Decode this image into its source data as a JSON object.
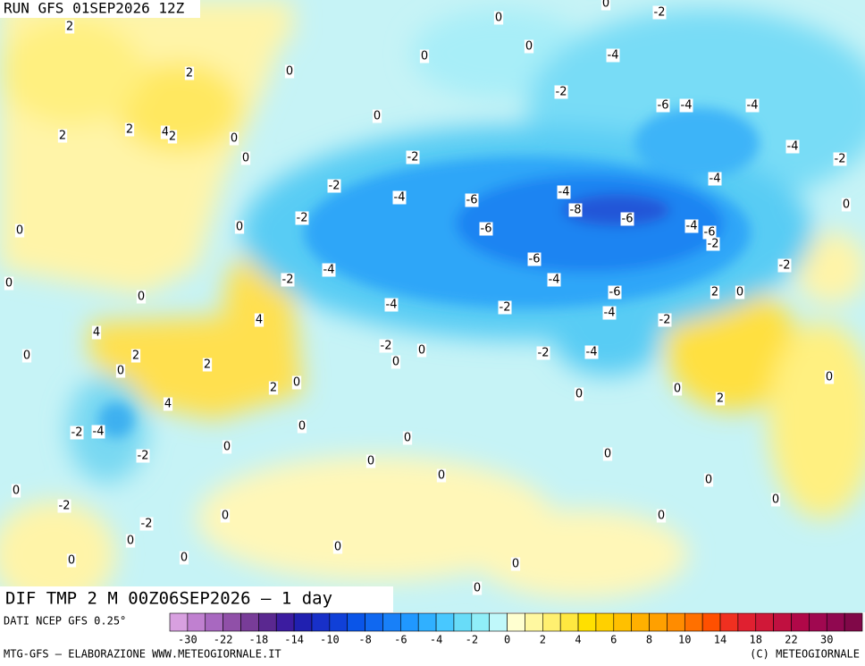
{
  "header": {
    "title": "RUN GFS 01SEP2026 12Z"
  },
  "map": {
    "contour_labels": [
      2,
      2,
      2,
      2,
      4,
      2,
      0,
      0,
      0,
      0,
      0,
      0,
      0,
      0,
      -2,
      -4,
      -2,
      -6,
      -4,
      -4,
      -4,
      -2,
      -4,
      -2,
      -2,
      -4,
      -6,
      -4,
      -8,
      -6,
      -6,
      -4,
      -6,
      -2,
      -2,
      -2,
      0,
      0,
      -4,
      -2,
      -6,
      -4,
      -6,
      2,
      0,
      0,
      0,
      -4,
      -2,
      -4,
      -2,
      4,
      4,
      -2,
      0,
      0,
      -2,
      -4,
      0,
      2,
      2,
      0,
      2,
      0,
      4,
      0,
      0,
      2,
      0,
      -2,
      -4,
      0,
      0,
      0,
      -2,
      0,
      0,
      0,
      0,
      -2,
      0,
      0,
      -2,
      0,
      0,
      0,
      0,
      0,
      0,
      0,
      0,
      0
    ]
  },
  "footer": {
    "product": "DIF TMP 2 M 00Z06SEP2026 — 1 day",
    "source": "DATI NCEP GFS 0.25°",
    "credit": "MTG-GFS — ELABORAZIONE WWW.METEOGIORNALE.IT",
    "copyright": "(C) METEOGIORNALE"
  },
  "colorbar": {
    "colors": [
      "#d8a0e0",
      "#c080d0",
      "#a868c0",
      "#9050a8",
      "#783c98",
      "#5a2890",
      "#3c1ca0",
      "#2020b0",
      "#1830c8",
      "#1040d8",
      "#0a55e8",
      "#1068f0",
      "#1880f8",
      "#2098ff",
      "#30b0ff",
      "#48c8ff",
      "#68dcf8",
      "#90eef8",
      "#c0f8fa",
      "#ffffd0",
      "#fff8a0",
      "#fff070",
      "#ffe840",
      "#ffe000",
      "#ffd000",
      "#ffc000",
      "#ffb000",
      "#ffa000",
      "#ff8c00",
      "#ff7000",
      "#ff5000",
      "#f03020",
      "#e02030",
      "#d01838",
      "#c01040",
      "#b00848",
      "#a00850",
      "#900850",
      "#800848"
    ],
    "ticks": [
      -30,
      -22,
      -18,
      -14,
      -10,
      -8,
      -6,
      -4,
      -2,
      0,
      2,
      4,
      6,
      8,
      10,
      14,
      18,
      22,
      30
    ]
  }
}
